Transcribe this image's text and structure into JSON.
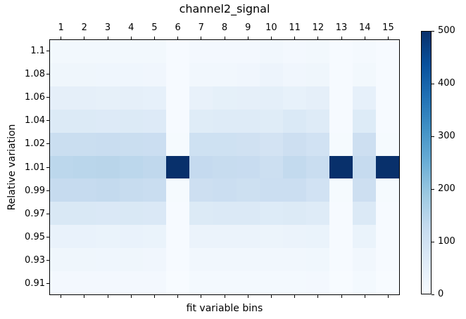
{
  "chart_data": {
    "type": "heatmap",
    "title": "channel2_signal",
    "xlabel": "fit variable bins",
    "ylabel": "Relative variation",
    "col_labels": [
      "1",
      "2",
      "3",
      "4",
      "5",
      "6",
      "7",
      "8",
      "9",
      "10",
      "11",
      "12",
      "13",
      "14",
      "15"
    ],
    "row_labels": [
      "1.1",
      "1.08",
      "1.06",
      "1.04",
      "1.02",
      "1.01",
      "0.99",
      "0.97",
      "0.95",
      "0.93",
      "0.91"
    ],
    "values": [
      [
        12,
        12,
        12,
        12,
        12,
        2,
        10,
        10,
        10,
        15,
        10,
        12,
        2,
        8,
        2
      ],
      [
        20,
        20,
        19,
        19,
        18,
        2,
        15,
        16,
        18,
        26,
        18,
        20,
        2,
        13,
        2
      ],
      [
        45,
        45,
        43,
        45,
        42,
        3,
        38,
        44,
        46,
        48,
        40,
        46,
        3,
        42,
        3
      ],
      [
        68,
        68,
        66,
        68,
        65,
        3,
        60,
        63,
        63,
        60,
        72,
        63,
        3,
        64,
        3
      ],
      [
        115,
        115,
        118,
        115,
        112,
        4,
        103,
        103,
        100,
        92,
        108,
        97,
        4,
        108,
        4
      ],
      [
        140,
        143,
        146,
        140,
        135,
        500,
        127,
        123,
        120,
        110,
        130,
        116,
        500,
        125,
        500
      ],
      [
        125,
        125,
        128,
        122,
        118,
        4,
        108,
        113,
        106,
        113,
        113,
        97,
        4,
        108,
        4
      ],
      [
        75,
        75,
        73,
        75,
        73,
        3,
        67,
        70,
        70,
        64,
        67,
        62,
        3,
        70,
        3
      ],
      [
        35,
        35,
        33,
        35,
        33,
        2,
        30,
        30,
        30,
        28,
        30,
        32,
        2,
        32,
        2
      ],
      [
        20,
        20,
        19,
        20,
        18,
        2,
        16,
        16,
        16,
        15,
        16,
        17,
        2,
        15,
        2
      ],
      [
        11,
        11,
        11,
        11,
        10,
        1,
        9,
        9,
        9,
        9,
        9,
        10,
        1,
        9,
        1
      ]
    ],
    "colormap": {
      "name": "Blues",
      "vmin": 0,
      "vmax": 500,
      "anchors": [
        "#f7fbff",
        "#deebf7",
        "#c6dbef",
        "#9ecae1",
        "#6baed6",
        "#4292c6",
        "#2171b5",
        "#08519c",
        "#08306b"
      ]
    },
    "colorbar": {
      "position": "right",
      "ticks": [
        0,
        100,
        200,
        300,
        400,
        500
      ],
      "tick_labels": [
        "0",
        "100",
        "200",
        "300",
        "400",
        "500"
      ]
    },
    "axis_color": "#000000",
    "background_color": "#ffffff",
    "grid": false,
    "x_axis_position": "top",
    "max_cell_color": "#08306b"
  }
}
